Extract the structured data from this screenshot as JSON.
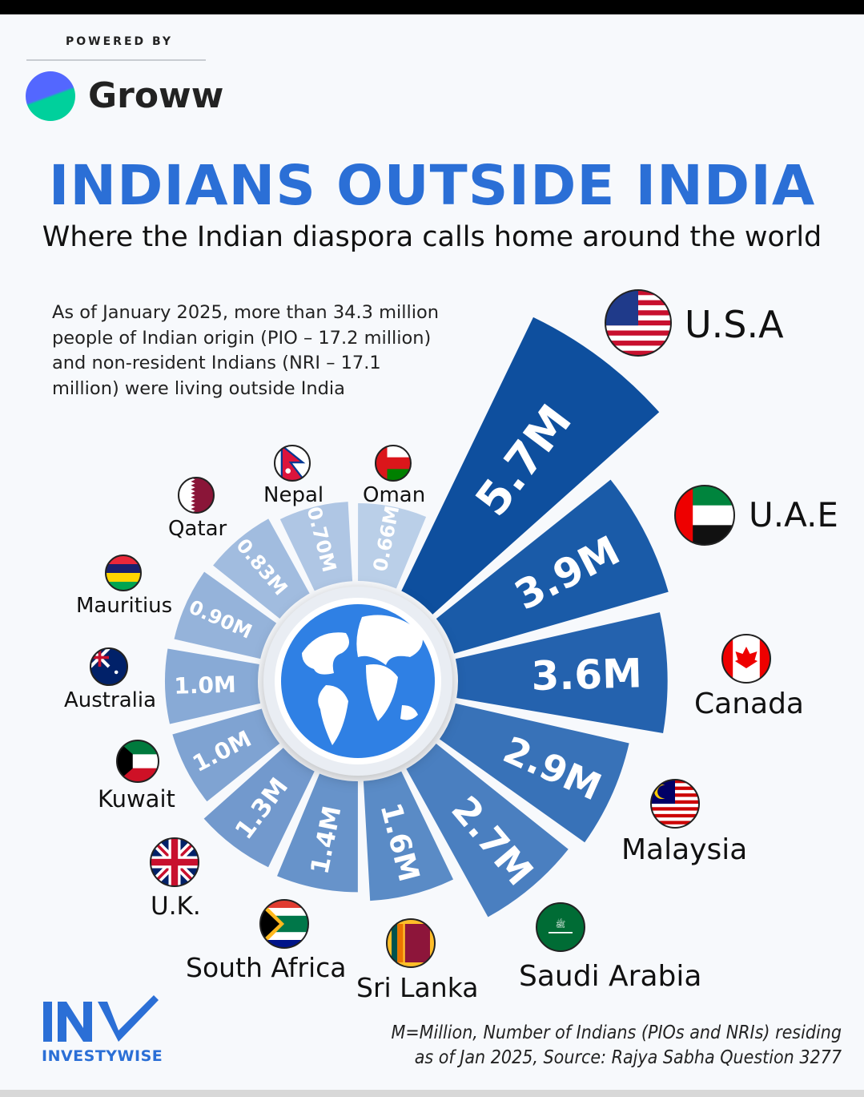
{
  "brand": {
    "powered_by": "POWERED BY",
    "name": "Groww",
    "footer_logo": "INVESTYWISE"
  },
  "header": {
    "title": "INDIANS OUTSIDE INDIA",
    "subtitle": "Where the Indian diaspora calls home around the world"
  },
  "intro": {
    "lines": [
      "As of January 2025, more than 34.3 million",
      "people of Indian origin (PIO – 17.2 million)",
      "and non-resident Indians (NRI – 17.1",
      "million) were living outside India"
    ]
  },
  "chart_data": {
    "type": "radial-bar",
    "title": "",
    "unit": "M",
    "categories": [
      "U.S.A",
      "U.A.E",
      "Canada",
      "Malaysia",
      "Saudi Arabia",
      "Sri Lanka",
      "South Africa",
      "U.K.",
      "Kuwait",
      "Australia",
      "Mauritius",
      "Qatar",
      "Nepal",
      "Oman"
    ],
    "values": [
      5.7,
      3.9,
      3.6,
      2.9,
      2.7,
      1.6,
      1.4,
      1.3,
      1.0,
      1.0,
      0.9,
      0.83,
      0.7,
      0.66
    ],
    "value_labels": [
      "5.7M",
      "3.9M",
      "3.6M",
      "2.9M",
      "2.7M",
      "1.6M",
      "1.4M",
      "1.3M",
      "1.0M",
      "1.0M",
      "0.90M",
      "0.83M",
      "0.70M",
      "0.66M"
    ],
    "colors": [
      "#0e4f9e",
      "#1a5ba8",
      "#2462ae",
      "#3872b8",
      "#4a7fc0",
      "#5a8bc6",
      "#6793ca",
      "#7299cd",
      "#7fa3d2",
      "#88aad6",
      "#95b3da",
      "#a1bcdf",
      "#afc6e4",
      "#bacfe8"
    ],
    "center_icon": "globe-icon"
  },
  "footnote": {
    "line1": "M=Million, Number of Indians (PIOs and NRIs) residing",
    "line2": "as of Jan 2025, Source: Rajya Sabha Question 3277"
  }
}
